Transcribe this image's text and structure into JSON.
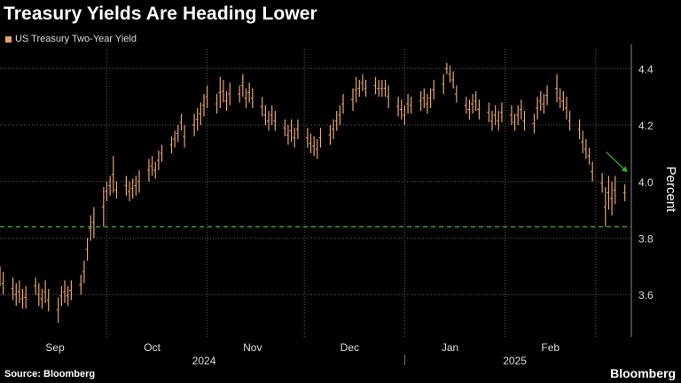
{
  "title": "Treasury Yields Are Heading Lower",
  "source": "Source: Bloomberg",
  "brand": "Bloomberg",
  "colors": {
    "background": "#000000",
    "series": "#e8a56b",
    "grid": "#5a5a5a",
    "reference_line": "#2fae2f",
    "arrow": "#2fae2f",
    "text": "#ffffff"
  },
  "chart_data": {
    "type": "bar",
    "subtype": "high-low range bars (daily)",
    "series": [
      {
        "name": "US Treasury Two-Year Yield",
        "x": [
          "2024-08-29",
          "2024-08-30",
          "2024-09-02",
          "2024-09-03",
          "2024-09-04",
          "2024-09-05",
          "2024-09-06",
          "2024-09-09",
          "2024-09-10",
          "2024-09-11",
          "2024-09-12",
          "2024-09-13",
          "2024-09-16",
          "2024-09-17",
          "2024-09-18",
          "2024-09-19",
          "2024-09-20",
          "2024-09-23",
          "2024-09-24",
          "2024-09-25",
          "2024-09-26",
          "2024-09-27",
          "2024-09-30",
          "2024-10-01",
          "2024-10-02",
          "2024-10-03",
          "2024-10-04",
          "2024-10-07",
          "2024-10-08",
          "2024-10-09",
          "2024-10-10",
          "2024-10-11",
          "2024-10-14",
          "2024-10-15",
          "2024-10-16",
          "2024-10-17",
          "2024-10-18",
          "2024-10-21",
          "2024-10-22",
          "2024-10-23",
          "2024-10-24",
          "2024-10-25",
          "2024-10-28",
          "2024-10-29",
          "2024-10-30",
          "2024-10-31",
          "2024-11-01",
          "2024-11-04",
          "2024-11-05",
          "2024-11-06",
          "2024-11-07",
          "2024-11-08",
          "2024-11-11",
          "2024-11-12",
          "2024-11-13",
          "2024-11-14",
          "2024-11-15",
          "2024-11-18",
          "2024-11-19",
          "2024-11-20",
          "2024-11-21",
          "2024-11-22",
          "2024-11-25",
          "2024-11-26",
          "2024-11-27",
          "2024-11-28",
          "2024-11-29",
          "2024-12-02",
          "2024-12-03",
          "2024-12-04",
          "2024-12-05",
          "2024-12-06",
          "2024-12-09",
          "2024-12-10",
          "2024-12-11",
          "2024-12-12",
          "2024-12-13",
          "2024-12-16",
          "2024-12-17",
          "2024-12-18",
          "2024-12-19",
          "2024-12-20",
          "2024-12-23",
          "2024-12-24",
          "2024-12-25",
          "2024-12-26",
          "2024-12-27",
          "2024-12-30",
          "2024-12-31",
          "2025-01-01",
          "2025-01-02",
          "2025-01-03",
          "2025-01-06",
          "2025-01-07",
          "2025-01-08",
          "2025-01-09",
          "2025-01-10",
          "2025-01-13",
          "2025-01-14",
          "2025-01-15",
          "2025-01-16",
          "2025-01-17",
          "2025-01-20",
          "2025-01-21",
          "2025-01-22",
          "2025-01-23",
          "2025-01-24",
          "2025-01-27",
          "2025-01-28",
          "2025-01-29",
          "2025-01-30",
          "2025-01-31",
          "2025-02-03",
          "2025-02-04",
          "2025-02-05",
          "2025-02-06",
          "2025-02-07",
          "2025-02-10",
          "2025-02-11",
          "2025-02-12",
          "2025-02-13",
          "2025-02-14",
          "2025-02-17",
          "2025-02-18",
          "2025-02-19",
          "2025-02-20",
          "2025-02-21",
          "2025-02-24",
          "2025-02-25",
          "2025-02-26",
          "2025-02-27",
          "2025-02-28",
          "2025-03-03",
          "2025-03-04",
          "2025-03-05",
          "2025-03-06",
          "2025-03-07",
          "2025-03-10"
        ],
        "low": [
          3.63,
          3.6,
          3.58,
          3.56,
          3.57,
          3.55,
          3.55,
          3.6,
          3.56,
          3.55,
          3.57,
          3.54,
          3.5,
          3.56,
          3.57,
          3.56,
          3.58,
          3.6,
          3.64,
          3.72,
          3.79,
          3.8,
          3.84,
          3.93,
          3.95,
          3.96,
          3.94,
          3.95,
          3.93,
          3.94,
          3.95,
          3.96,
          4.0,
          4.02,
          4.01,
          4.04,
          4.07,
          4.1,
          4.12,
          4.14,
          4.18,
          4.12,
          4.16,
          4.18,
          4.2,
          4.23,
          4.26,
          4.24,
          4.26,
          4.28,
          4.25,
          4.27,
          4.28,
          4.3,
          4.26,
          4.28,
          4.26,
          4.23,
          4.2,
          4.18,
          4.2,
          4.18,
          4.16,
          4.13,
          4.14,
          4.12,
          4.15,
          4.12,
          4.1,
          4.09,
          4.08,
          4.12,
          4.13,
          4.15,
          4.18,
          4.2,
          4.24,
          4.25,
          4.28,
          4.3,
          4.32,
          4.3,
          4.31,
          4.3,
          4.3,
          4.3,
          4.26,
          4.23,
          4.22,
          4.2,
          4.24,
          4.24,
          4.25,
          4.26,
          4.24,
          4.26,
          4.29,
          4.31,
          4.38,
          4.35,
          4.33,
          4.28,
          4.24,
          4.22,
          4.24,
          4.25,
          4.22,
          4.21,
          4.18,
          4.2,
          4.18,
          4.21,
          4.2,
          4.18,
          4.2,
          4.22,
          4.18,
          4.17,
          4.22,
          4.25,
          4.24,
          4.27,
          4.28,
          4.26,
          4.25,
          4.22,
          4.18,
          4.15,
          4.1,
          4.08,
          4.06,
          4.0,
          3.96,
          3.84,
          3.9,
          3.88,
          3.92,
          3.93
        ],
        "high": [
          3.7,
          3.68,
          3.66,
          3.64,
          3.65,
          3.62,
          3.63,
          3.66,
          3.64,
          3.62,
          3.65,
          3.62,
          3.59,
          3.63,
          3.65,
          3.63,
          3.65,
          3.67,
          3.72,
          3.8,
          3.88,
          3.91,
          3.98,
          4.0,
          4.02,
          4.09,
          4.0,
          4.02,
          4.0,
          4.01,
          4.02,
          4.04,
          4.08,
          4.09,
          4.07,
          4.11,
          4.13,
          4.16,
          4.18,
          4.2,
          4.24,
          4.2,
          4.24,
          4.26,
          4.28,
          4.31,
          4.34,
          4.31,
          4.37,
          4.36,
          4.32,
          4.35,
          4.34,
          4.38,
          4.33,
          4.35,
          4.33,
          4.3,
          4.27,
          4.25,
          4.27,
          4.25,
          4.22,
          4.2,
          4.22,
          4.19,
          4.22,
          4.19,
          4.17,
          4.16,
          4.15,
          4.19,
          4.2,
          4.22,
          4.25,
          4.27,
          4.31,
          4.33,
          4.37,
          4.36,
          4.38,
          4.36,
          4.37,
          4.36,
          4.36,
          4.36,
          4.34,
          4.3,
          4.29,
          4.27,
          4.31,
          4.3,
          4.32,
          4.33,
          4.31,
          4.33,
          4.36,
          4.38,
          4.42,
          4.41,
          4.39,
          4.34,
          4.3,
          4.29,
          4.31,
          4.32,
          4.29,
          4.28,
          4.25,
          4.27,
          4.25,
          4.28,
          4.27,
          4.24,
          4.27,
          4.29,
          4.25,
          4.24,
          4.3,
          4.32,
          4.31,
          4.34,
          4.38,
          4.33,
          4.32,
          4.3,
          4.25,
          4.22,
          4.18,
          4.15,
          4.12,
          4.07,
          4.03,
          3.98,
          4.02,
          4.0,
          4.02,
          3.99
        ]
      }
    ],
    "reference_lines": [
      {
        "axis": "y",
        "value": 3.84,
        "style": "dashed",
        "color": "#2fae2f"
      }
    ],
    "annotation_arrow": {
      "from": [
        "2025-03-07",
        4.06
      ],
      "to": [
        "2025-03-10",
        4.02
      ],
      "color": "#2fae2f"
    },
    "y_axis": {
      "label": "Percent",
      "position": "right",
      "range": [
        3.45,
        4.47
      ],
      "ticks": [
        3.6,
        3.8,
        4.0,
        4.2,
        4.4
      ],
      "tick_labels": [
        "3.6",
        "3.8",
        "4.0",
        "4.2",
        "4.4"
      ]
    },
    "x_axis": {
      "range": [
        "2024-08-29",
        "2025-03-12"
      ],
      "month_labels": [
        {
          "label": "Sep",
          "center": "2024-09-15"
        },
        {
          "label": "Oct",
          "center": "2024-10-15"
        },
        {
          "label": "Nov",
          "center": "2024-11-15"
        },
        {
          "label": "Dec",
          "center": "2024-12-15"
        },
        {
          "label": "Jan",
          "center": "2025-01-15"
        },
        {
          "label": "Feb",
          "center": "2025-02-15"
        }
      ],
      "year_labels": [
        {
          "label": "2024",
          "center": "2024-10-31"
        },
        {
          "label": "2025",
          "center": "2025-02-04"
        }
      ],
      "year_separator": "2025-01-01",
      "vertical_grid": [
        "2024-10-01",
        "2024-11-01",
        "2024-12-01",
        "2025-01-01",
        "2025-02-01",
        "2025-03-01"
      ]
    },
    "grid": true,
    "legend": "top-left"
  }
}
